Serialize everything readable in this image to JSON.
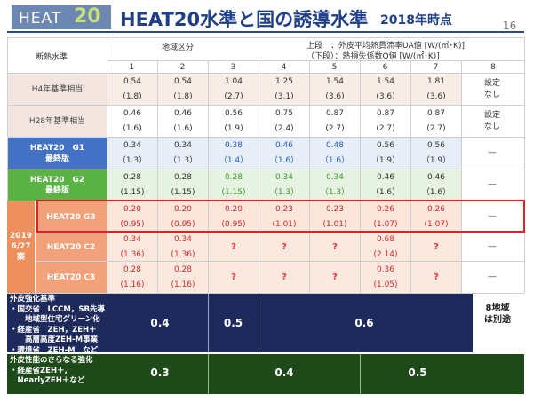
{
  "header": {
    "badge_word": "HEAT",
    "badge_num": "20",
    "title": "HEAT20水準と国の誘導水準",
    "subtitle": "2018年時点",
    "page_number": "16"
  },
  "table": {
    "corner_label": "断熱水準",
    "region_label": "地域区分",
    "legend_top": "上段　：外皮平均熱貫流率UA値 [W/(㎡･K)]",
    "legend_bottom": "（下段）：熱損失係数Q値 [W/(㎡･K)]",
    "columns": [
      "1",
      "2",
      "3",
      "4",
      "5",
      "6",
      "7",
      "8"
    ],
    "side_label_2019": [
      "2019",
      "6/27",
      "案"
    ],
    "rows": {
      "h4": {
        "label": "H4年基準相当",
        "ua": [
          "0.54",
          "0.54",
          "1.04",
          "1.25",
          "1.54",
          "1.54",
          "1.81"
        ],
        "q": [
          "(1.8)",
          "(1.8)",
          "(2.7)",
          "(3.1)",
          "(3.6)",
          "(3.6)",
          "(3.6)"
        ],
        "col8": [
          "設定",
          "なし"
        ]
      },
      "h28": {
        "label": "H28年基準相当",
        "ua": [
          "0.46",
          "0.46",
          "0.56",
          "0.75",
          "0.87",
          "0.87",
          "0.87"
        ],
        "q": [
          "(1.6)",
          "(1.6)",
          "(1.9)",
          "(2.4)",
          "(2.7)",
          "(2.7)",
          "(2.7)"
        ],
        "col8": [
          "設定",
          "なし"
        ]
      },
      "g1": {
        "label": "HEAT20　G1",
        "sublabel": "最終版",
        "ua": [
          "0.34",
          "0.34",
          "0.38",
          "0.46",
          "0.48",
          "0.56",
          "0.56"
        ],
        "q": [
          "（1.3）",
          "（1.3）",
          "（1.4）",
          "（1.6）",
          "（1.6）",
          "（1.9）",
          "（1.9）"
        ],
        "col8": "―"
      },
      "g2": {
        "label": "HEAT20　G2",
        "sublabel": "最終版",
        "ua": [
          "0.28",
          "0.28",
          "0.28",
          "0.34",
          "0.34",
          "0.46",
          "0.46"
        ],
        "q": [
          "(1.15)",
          "(1.15)",
          "(1.15)",
          "（1.3）",
          "（1.3）",
          "（1.6）",
          "（1.6）"
        ],
        "col8": "―"
      },
      "g3": {
        "label": "HEAT20 G3",
        "ua": [
          "0.20",
          "0.20",
          "0.20",
          "0.23",
          "0.23",
          "0.26",
          "0.26"
        ],
        "q": [
          "(0.95)",
          "(0.95)",
          "(0.95)",
          "(1.01)",
          "(1.01)",
          "(1.07)",
          "(1.07)"
        ],
        "col8": "―"
      },
      "c2": {
        "label": "HEAT20 C2",
        "ua": [
          "0.34",
          "0.34",
          "?",
          "?",
          "?",
          "0.68",
          "?"
        ],
        "q": [
          "(1.36)",
          "(1.36)",
          "",
          "",
          "",
          "(2.14)",
          ""
        ],
        "col8": "―"
      },
      "c3": {
        "label": "HEAT20 C3",
        "ua": [
          "0.28",
          "0.28",
          "?",
          "?",
          "?",
          "0.36",
          "?"
        ],
        "q": [
          "(1.16)",
          "(1.16)",
          "",
          "",
          "",
          "(1.05)",
          ""
        ],
        "col8": "―"
      }
    }
  },
  "bands": {
    "band1": {
      "lines": [
        "外皮強化基準",
        "・国交省　LCCM，SB先導",
        "　　地域型住宅グリーン化",
        "・経産省　ZEH，ZEH＋",
        "　　高層高度ZEH-M事業",
        "・環境省　ZEH-M　など"
      ],
      "values": [
        "0.4",
        "0.5",
        "0.6"
      ]
    },
    "band2": {
      "lines": [
        "外皮性能のさらなる強化",
        "・経産省ZEH＋,",
        "　NearlyZEH＋など"
      ],
      "values": [
        "0.3",
        "0.4",
        "0.5"
      ]
    },
    "note_col8": [
      "8地域",
      "は別途"
    ]
  },
  "colors": {
    "header_blue": "#1f3f86",
    "g1_blue": "#4472c4",
    "g2_green": "#5cb345",
    "g3_outline": "#e31e24",
    "band_navy": "#1f2a5c",
    "band_green": "#1e4a1a"
  }
}
